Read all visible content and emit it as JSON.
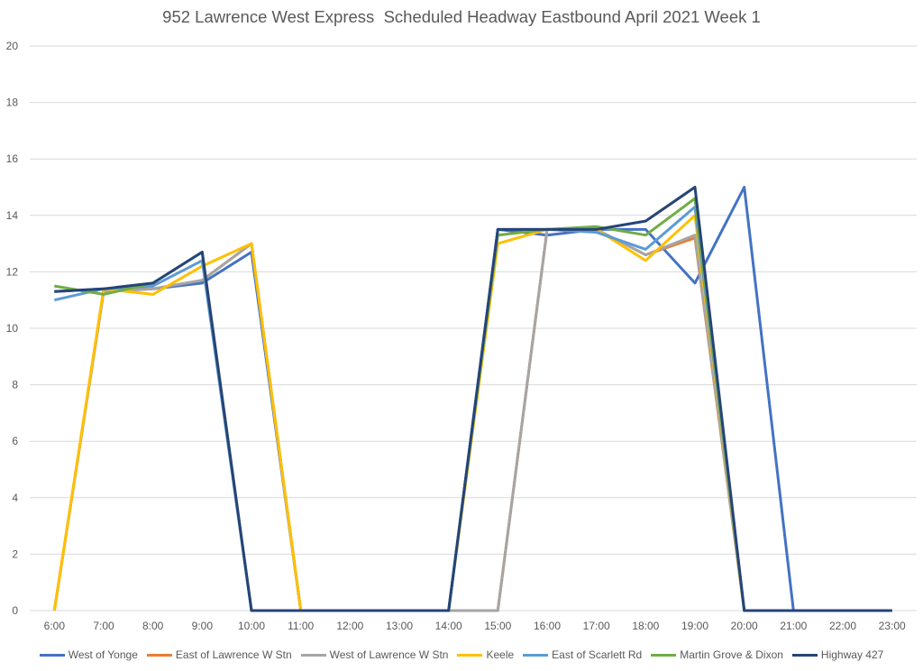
{
  "chart_data": {
    "type": "line",
    "title": "952 Lawrence West Express  Scheduled Headway Eastbound April 2021 Week 1",
    "xlabel": "",
    "ylabel": "",
    "ylim": [
      0,
      20
    ],
    "yticks": [
      "0",
      "2",
      "4",
      "6",
      "8",
      "10",
      "12",
      "14",
      "16",
      "18",
      "20"
    ],
    "categories": [
      "6:00",
      "7:00",
      "8:00",
      "9:00",
      "10:00",
      "11:00",
      "12:00",
      "13:00",
      "14:00",
      "15:00",
      "16:00",
      "17:00",
      "18:00",
      "19:00",
      "20:00",
      "21:00",
      "22:00",
      "23:00"
    ],
    "grid": true,
    "legend_position": "bottom",
    "series": [
      {
        "name": "West of Yonge",
        "color": "#4472C4",
        "values": [
          11.3,
          11.4,
          11.4,
          11.6,
          12.7,
          0,
          0,
          0,
          0,
          13.5,
          13.3,
          13.5,
          13.5,
          11.6,
          15.0,
          0,
          0,
          0
        ]
      },
      {
        "name": "East of Lawrence W Stn",
        "color": "#ED7D31",
        "values": [
          0,
          11.3,
          11.4,
          11.7,
          13.0,
          0,
          0,
          0,
          0,
          0,
          13.5,
          13.5,
          12.6,
          13.2,
          0,
          0,
          0,
          0
        ]
      },
      {
        "name": "West of Lawrence W Stn",
        "color": "#A5A5A5",
        "values": [
          0,
          11.3,
          11.4,
          11.7,
          13.0,
          0,
          0,
          0,
          0,
          0,
          13.5,
          13.5,
          12.6,
          13.3,
          0,
          0,
          0,
          0
        ]
      },
      {
        "name": "Keele",
        "color": "#FFC000",
        "values": [
          0,
          11.4,
          11.2,
          12.2,
          13.0,
          0,
          0,
          0,
          0,
          13.0,
          13.5,
          13.5,
          12.4,
          14.0,
          0,
          0,
          0,
          0
        ]
      },
      {
        "name": "East of Scarlett Rd",
        "color": "#5B9BD5",
        "values": [
          11.0,
          11.4,
          11.5,
          12.4,
          0,
          0,
          0,
          0,
          0,
          13.5,
          13.5,
          13.4,
          12.8,
          14.3,
          0,
          0,
          0,
          0
        ]
      },
      {
        "name": "Martin Grove & Dixon",
        "color": "#70AD47",
        "values": [
          11.5,
          11.2,
          11.6,
          12.7,
          0,
          0,
          0,
          0,
          0,
          13.3,
          13.5,
          13.6,
          13.3,
          14.6,
          0,
          0,
          0,
          0
        ]
      },
      {
        "name": "Highway 427",
        "color": "#264478",
        "values": [
          11.3,
          11.4,
          11.6,
          12.7,
          0,
          0,
          0,
          0,
          0,
          13.5,
          13.5,
          13.5,
          13.8,
          15.0,
          0,
          0,
          0,
          0
        ]
      }
    ]
  }
}
